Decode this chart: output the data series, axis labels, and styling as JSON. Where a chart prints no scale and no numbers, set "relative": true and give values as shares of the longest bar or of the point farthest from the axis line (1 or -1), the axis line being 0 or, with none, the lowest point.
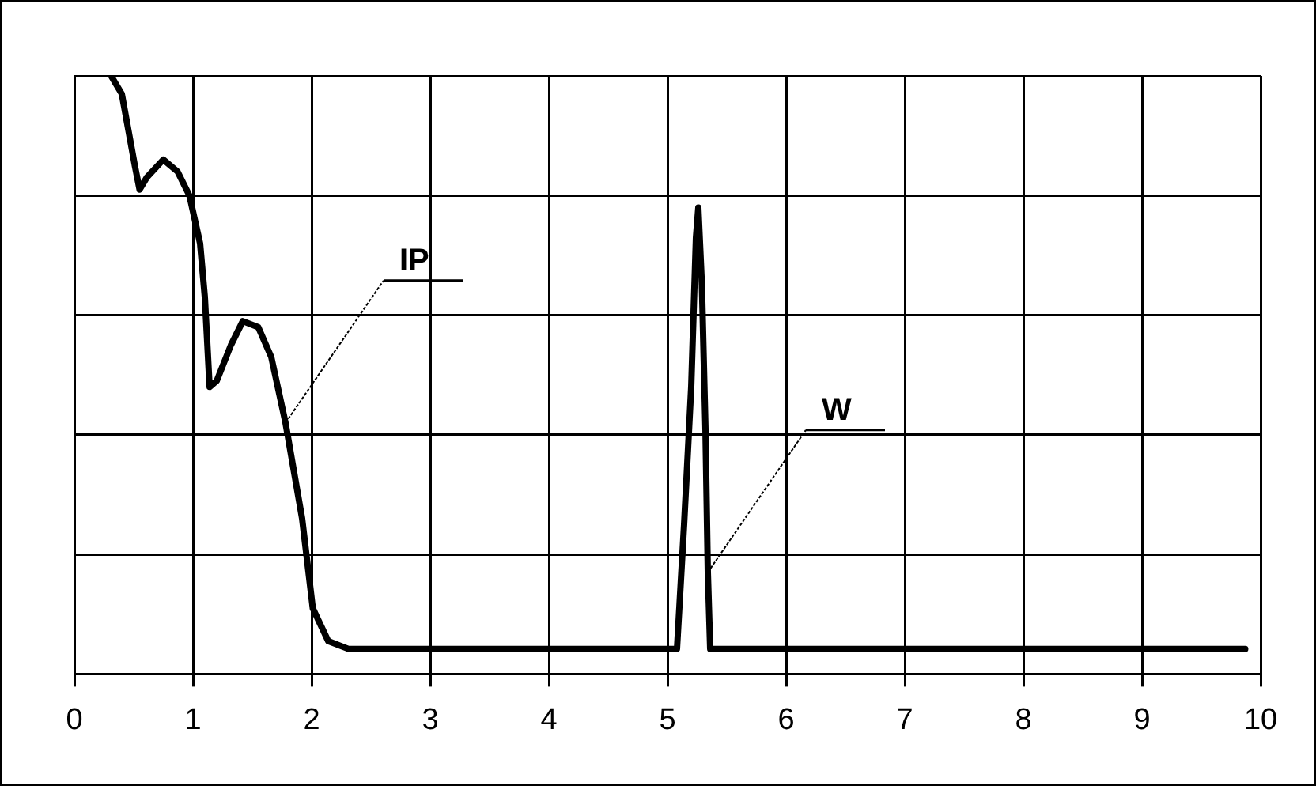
{
  "chart_data": {
    "type": "line",
    "relative": true,
    "xlim": [
      0,
      10
    ],
    "xticks": [
      0,
      1,
      2,
      3,
      4,
      5,
      6,
      7,
      8,
      9,
      10
    ],
    "grid": true,
    "legend": false,
    "marker": "none",
    "line_style": "solid",
    "series": [
      {
        "color": "#000000",
        "x": [
          0.31,
          0.4,
          0.51,
          0.55,
          0.61,
          0.75,
          0.87,
          0.97,
          1.06,
          1.1,
          1.14,
          1.2,
          1.32,
          1.42,
          1.55,
          1.66,
          1.78,
          1.92,
          2.01,
          2.14,
          2.31,
          5.08,
          5.14,
          5.2,
          5.24,
          5.26,
          5.29,
          5.32,
          5.34,
          5.36,
          9.87
        ],
        "values": [
          1.0,
          0.97,
          0.85,
          0.81,
          0.83,
          0.86,
          0.84,
          0.8,
          0.72,
          0.63,
          0.48,
          0.49,
          0.55,
          0.59,
          0.58,
          0.53,
          0.42,
          0.26,
          0.11,
          0.055,
          0.042,
          0.042,
          0.25,
          0.48,
          0.73,
          0.78,
          0.65,
          0.41,
          0.17,
          0.042,
          0.042
        ]
      }
    ],
    "annotations": [
      {
        "text": "IP",
        "x": 1.78,
        "y": 0.42
      },
      {
        "text": "W",
        "x": 5.34,
        "y": 0.17
      }
    ]
  }
}
